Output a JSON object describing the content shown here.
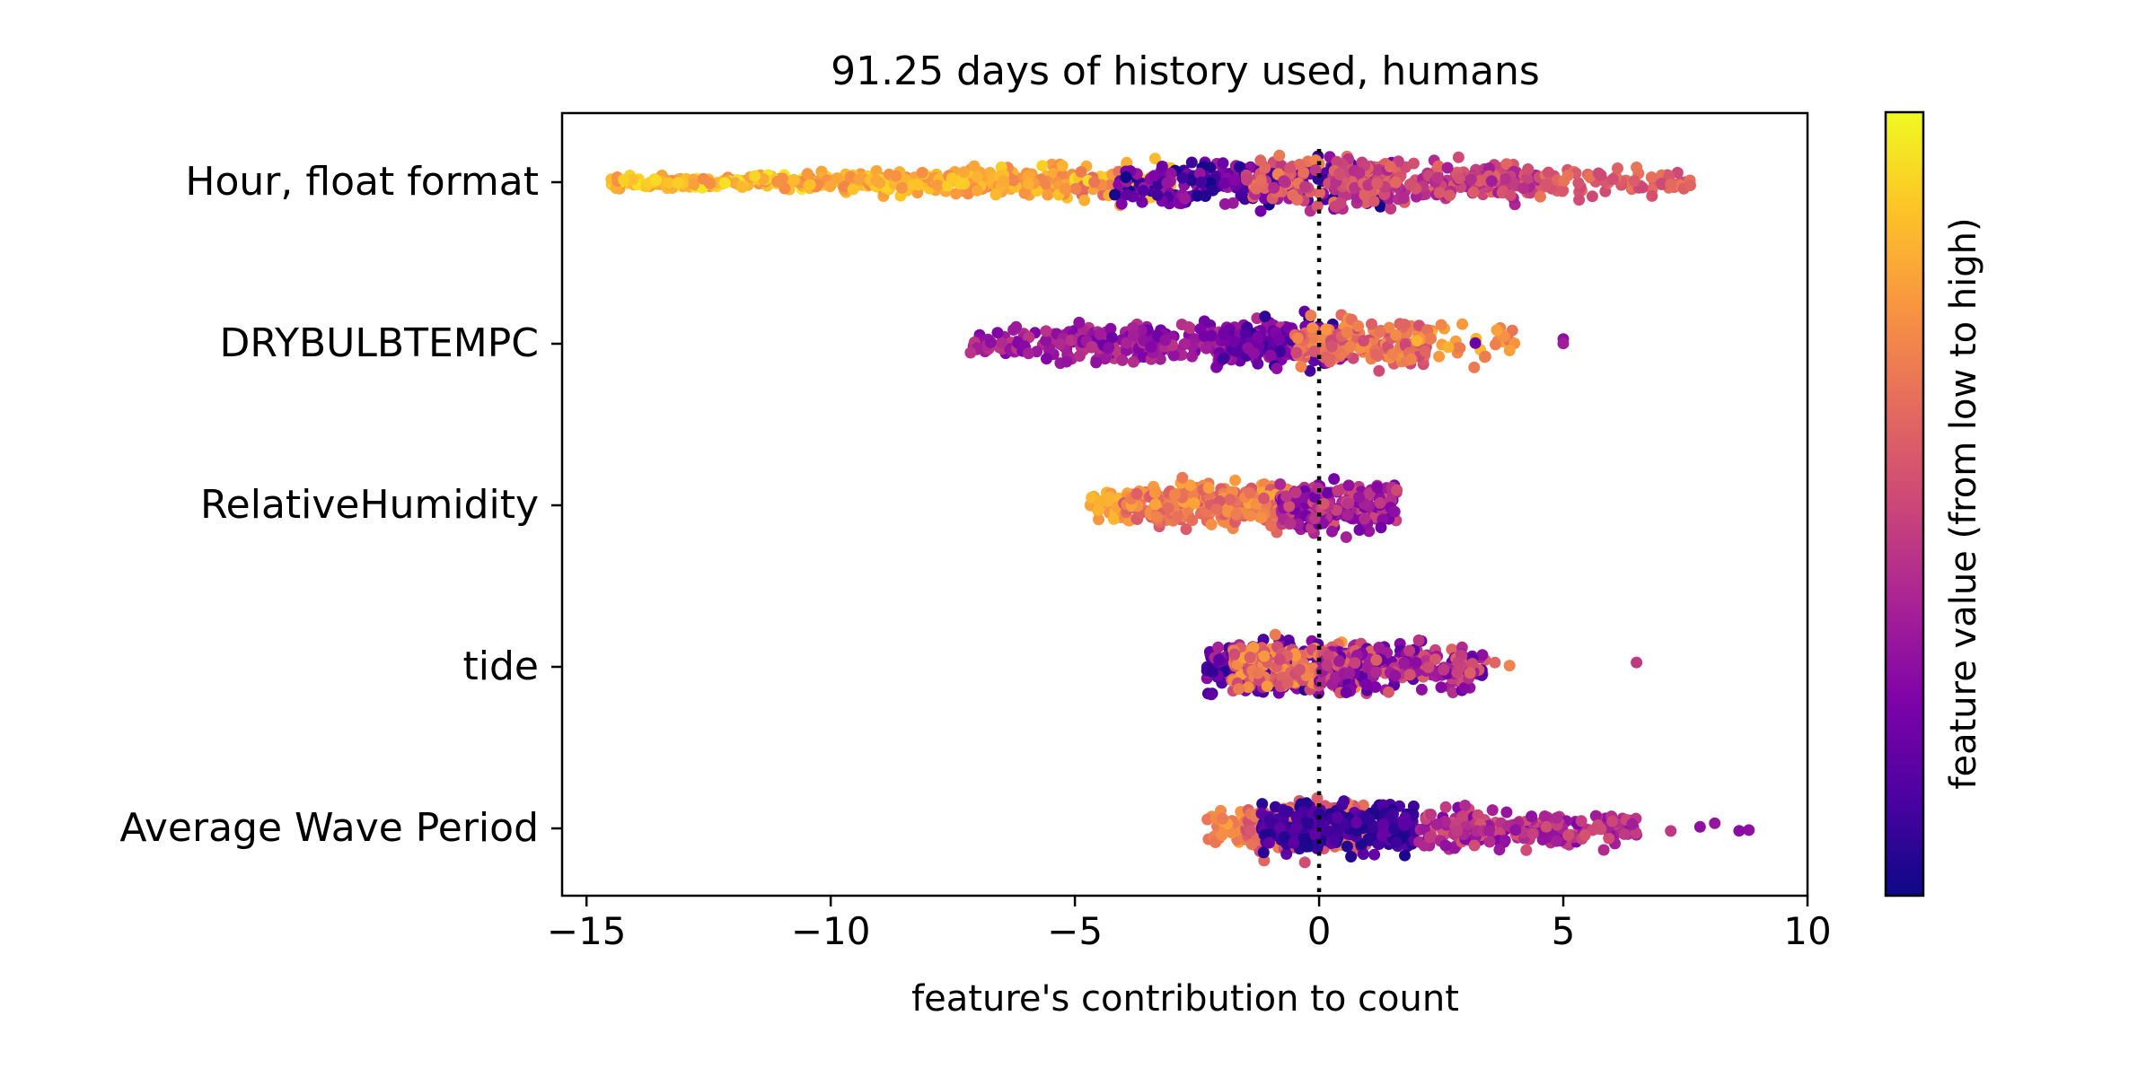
{
  "chart_data": {
    "type": "scatter",
    "subtype": "beeswarm",
    "title": "91.25 days of history used, humans",
    "xlabel": "feature's contribution to count",
    "ylabel": "",
    "xlim": [
      -15.5,
      10
    ],
    "xticks": [
      -15,
      -10,
      -5,
      0,
      5,
      10
    ],
    "xtick_labels": [
      "−15",
      "−10",
      "−5",
      "0",
      "5",
      "10"
    ],
    "grid": false,
    "reference_line": {
      "x": 0,
      "style": "dotted"
    },
    "colormap": "plasma",
    "colorbar_label": "feature value (from low to high)",
    "features": [
      {
        "name": "Hour, float format",
        "groups": [
          {
            "xmin": -14.5,
            "xmax": -10.5,
            "n": 160,
            "vmin": 0.72,
            "vmax": 0.97
          },
          {
            "xmin": -10.5,
            "xmax": -5.0,
            "n": 240,
            "vmin": 0.7,
            "vmax": 0.92
          },
          {
            "xmin": -5.0,
            "xmax": -3.0,
            "n": 80,
            "vmin": 0.6,
            "vmax": 0.95
          },
          {
            "xmin": -4.2,
            "xmax": 1.5,
            "n": 260,
            "vmin": 0.0,
            "vmax": 0.35
          },
          {
            "xmin": -1.5,
            "xmax": 1.5,
            "n": 80,
            "vmin": 0.4,
            "vmax": 0.7
          },
          {
            "xmin": 0.3,
            "xmax": 4.5,
            "n": 220,
            "vmin": 0.35,
            "vmax": 0.62
          },
          {
            "xmin": 4.5,
            "xmax": 7.6,
            "n": 70,
            "vmin": 0.5,
            "vmax": 0.66
          }
        ],
        "outliers": [
          [
            -5.2,
            0.75
          ],
          [
            7.6,
            0.6
          ],
          [
            7.2,
            0.62
          ]
        ]
      },
      {
        "name": "DRYBULBTEMPC",
        "groups": [
          {
            "xmin": -7.2,
            "xmax": -5.0,
            "n": 75,
            "vmin": 0.25,
            "vmax": 0.45
          },
          {
            "xmin": -5.0,
            "xmax": -0.5,
            "n": 230,
            "vmin": 0.2,
            "vmax": 0.45
          },
          {
            "xmin": -2.0,
            "xmax": 0.5,
            "n": 110,
            "vmin": 0.05,
            "vmax": 0.3
          },
          {
            "xmin": -0.5,
            "xmax": 2.2,
            "n": 180,
            "vmin": 0.5,
            "vmax": 0.75
          },
          {
            "xmin": 2.0,
            "xmax": 4.0,
            "n": 35,
            "vmin": 0.6,
            "vmax": 0.85
          }
        ],
        "outliers": [
          [
            5.0,
            0.3
          ],
          [
            5.0,
            0.35
          ],
          [
            4.0,
            0.75
          ],
          [
            3.9,
            0.78
          ],
          [
            3.2,
            0.2
          ]
        ]
      },
      {
        "name": "RelativeHumidity",
        "groups": [
          {
            "xmin": -4.7,
            "xmax": -4.0,
            "n": 28,
            "vmin": 0.75,
            "vmax": 0.85
          },
          {
            "xmin": -4.0,
            "xmax": -0.5,
            "n": 300,
            "vmin": 0.55,
            "vmax": 0.8
          },
          {
            "xmin": -0.8,
            "xmax": 1.6,
            "n": 240,
            "vmin": 0.2,
            "vmax": 0.55
          }
        ],
        "outliers": []
      },
      {
        "name": "tide",
        "groups": [
          {
            "xmin": -2.3,
            "xmax": 0.0,
            "n": 200,
            "vmin": 0.05,
            "vmax": 0.4
          },
          {
            "xmin": -1.8,
            "xmax": 1.0,
            "n": 200,
            "vmin": 0.5,
            "vmax": 0.78
          },
          {
            "xmin": 0.0,
            "xmax": 3.4,
            "n": 250,
            "vmin": 0.15,
            "vmax": 0.6
          }
        ],
        "outliers": [
          [
            6.5,
            0.45
          ],
          [
            3.9,
            0.7
          ],
          [
            3.6,
            0.6
          ]
        ]
      },
      {
        "name": "Average Wave Period",
        "groups": [
          {
            "xmin": -2.3,
            "xmax": -1.5,
            "n": 40,
            "vmin": 0.65,
            "vmax": 0.8
          },
          {
            "xmin": -1.5,
            "xmax": 1.0,
            "n": 260,
            "vmin": 0.5,
            "vmax": 0.7
          },
          {
            "xmin": -1.2,
            "xmax": 2.0,
            "n": 250,
            "vmin": 0.02,
            "vmax": 0.2
          },
          {
            "xmin": 2.0,
            "xmax": 6.5,
            "n": 220,
            "vmin": 0.25,
            "vmax": 0.55
          }
        ],
        "outliers": [
          [
            8.8,
            0.3
          ],
          [
            8.6,
            0.28
          ],
          [
            8.1,
            0.32
          ],
          [
            7.8,
            0.3
          ],
          [
            7.2,
            0.45
          ]
        ]
      }
    ]
  }
}
